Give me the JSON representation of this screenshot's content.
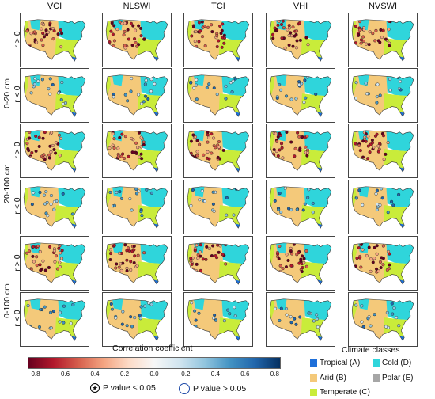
{
  "columns": [
    "VCI",
    "NLSWI",
    "TCI",
    "VHI",
    "NVSWI"
  ],
  "rows": [
    {
      "depth": "0-20 cm",
      "sub": [
        "r > 0",
        "r < 0"
      ]
    },
    {
      "depth": "20-100 cm",
      "sub": [
        "r > 0",
        "r < 0"
      ]
    },
    {
      "depth": "0-100 cm",
      "sub": [
        "r > 0",
        "r < 0"
      ]
    }
  ],
  "colorbar": {
    "title": "Correlation coefficient",
    "ticks": [
      "0.8",
      "0.6",
      "0.4",
      "0.2",
      "0.0",
      "−0.2",
      "−0.4",
      "−0.6",
      "−0.8"
    ],
    "colors": [
      "#67001f",
      "#b2182b",
      "#d6604d",
      "#f4a582",
      "#fddbc7",
      "#f7f7f7",
      "#d1e5f0",
      "#92c5de",
      "#4393c3",
      "#2166ac",
      "#053061"
    ]
  },
  "pvalue": {
    "sig_symbol": "★",
    "sig_label": "P value ≤ 0.05",
    "nonsig_label": "P value  >  0.05"
  },
  "climate": {
    "title": "Climate classes",
    "classes": [
      {
        "label": "Tropical (A)",
        "color": "#1e6fd9"
      },
      {
        "label": "Cold (D)",
        "color": "#2fd5db"
      },
      {
        "label": "Arid (B)",
        "color": "#f4c97a"
      },
      {
        "label": "Polar (E)",
        "color": "#a6a6a6"
      },
      {
        "label": "Temperate (C)",
        "color": "#c9ec3a"
      }
    ]
  },
  "map_colors": {
    "arid": "#f4c97a",
    "cold": "#2fd5db",
    "temperate": "#c9ec3a",
    "tropical": "#1e6fd9",
    "outline": "#333333"
  }
}
